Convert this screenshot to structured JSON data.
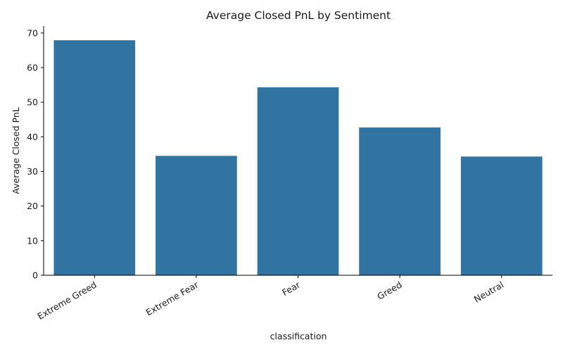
{
  "chart_data": {
    "type": "bar",
    "title": "Average Closed PnL by Sentiment",
    "xlabel": "classification",
    "ylabel": "Average Closed PnL",
    "categories": [
      "Extreme Greed",
      "Extreme Fear",
      "Fear",
      "Greed",
      "Neutral"
    ],
    "values": [
      67.9,
      34.5,
      54.3,
      42.7,
      34.3
    ],
    "ylim": [
      0,
      72
    ],
    "yticks": [
      0,
      10,
      20,
      30,
      40,
      50,
      60,
      70
    ],
    "grid": false,
    "bar_color": "#3274a1"
  }
}
